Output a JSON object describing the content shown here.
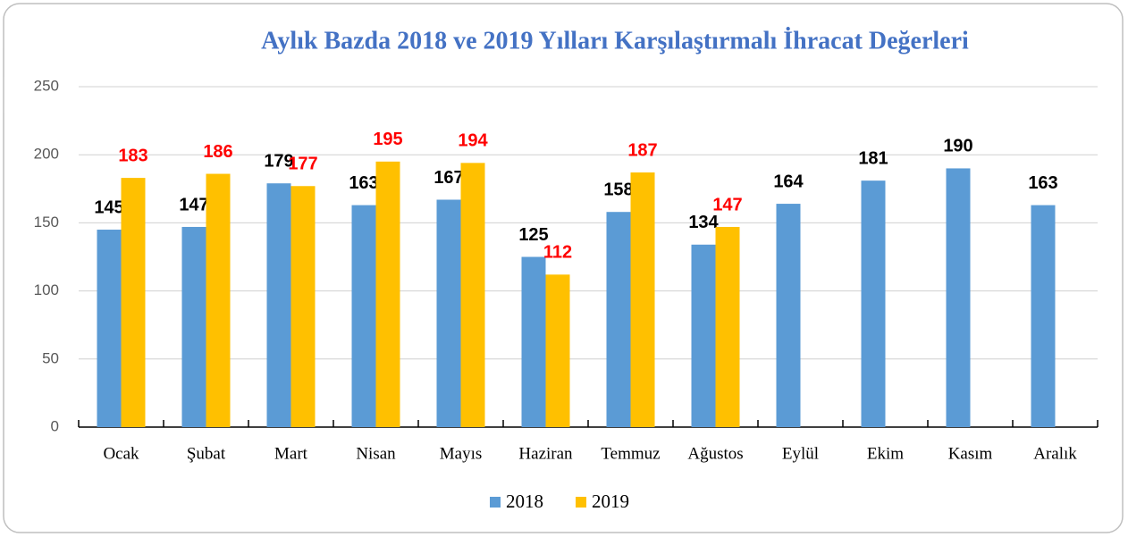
{
  "chart_data": {
    "type": "bar",
    "title": "Aylık Bazda  2018 ve 2019 Yılları Karşılaştırmalı İhracat Değerleri",
    "categories": [
      "Ocak",
      "Şubat",
      "Mart",
      "Nisan",
      "Mayıs",
      "Haziran",
      "Temmuz",
      "Ağustos",
      "Eylül",
      "Ekim",
      "Kasım",
      "Aralık"
    ],
    "series": [
      {
        "name": "2018",
        "color": "#5b9bd5",
        "label_color": "#000000",
        "values": [
          145,
          147,
          179,
          163,
          167,
          125,
          158,
          134,
          164,
          181,
          190,
          163
        ]
      },
      {
        "name": "2019",
        "color": "#ffc000",
        "label_color": "#ff0000",
        "values": [
          183,
          186,
          177,
          195,
          194,
          112,
          187,
          147,
          null,
          null,
          null,
          null
        ]
      }
    ],
    "ylim": [
      0,
      250
    ],
    "yticks": [
      0,
      50,
      100,
      150,
      200,
      250
    ],
    "grid": true,
    "legend": "bottom"
  }
}
